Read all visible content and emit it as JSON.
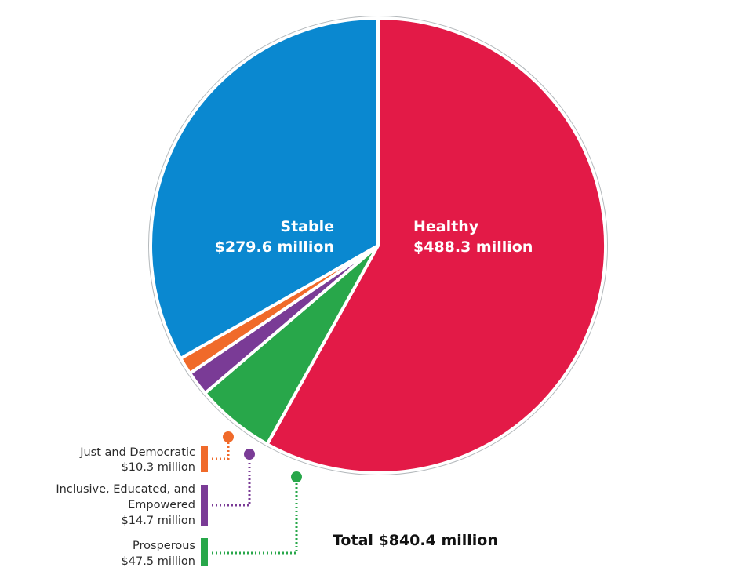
{
  "chart_data": {
    "type": "pie",
    "unit": "million",
    "total_label": "Total $840.4 million",
    "slices": [
      {
        "name": "Healthy",
        "value": 488.3,
        "label_line1": "Healthy",
        "label_line2": "$488.3  million",
        "color": "#e31a47"
      },
      {
        "name": "Prosperous",
        "value": 47.5,
        "label_line1": "Prosperous",
        "label_line2": "$47.5 million",
        "color": "#28a74a"
      },
      {
        "name": "Inclusive, Educated, and Empowered",
        "value": 14.7,
        "label_lines": [
          "Inclusive, Educated, and",
          "Empowered",
          "$14.7 million"
        ],
        "color": "#7a3b96"
      },
      {
        "name": "Just and Democratic",
        "value": 10.3,
        "label_line1": "Just and Democratic",
        "label_line2": "$10.3 million",
        "color": "#f06a2a"
      },
      {
        "name": "Stable",
        "value": 279.6,
        "label_line1": "Stable",
        "label_line2": "$279.6  million",
        "color": "#0a88d0"
      }
    ],
    "outline_color": "#b3b8bb"
  }
}
